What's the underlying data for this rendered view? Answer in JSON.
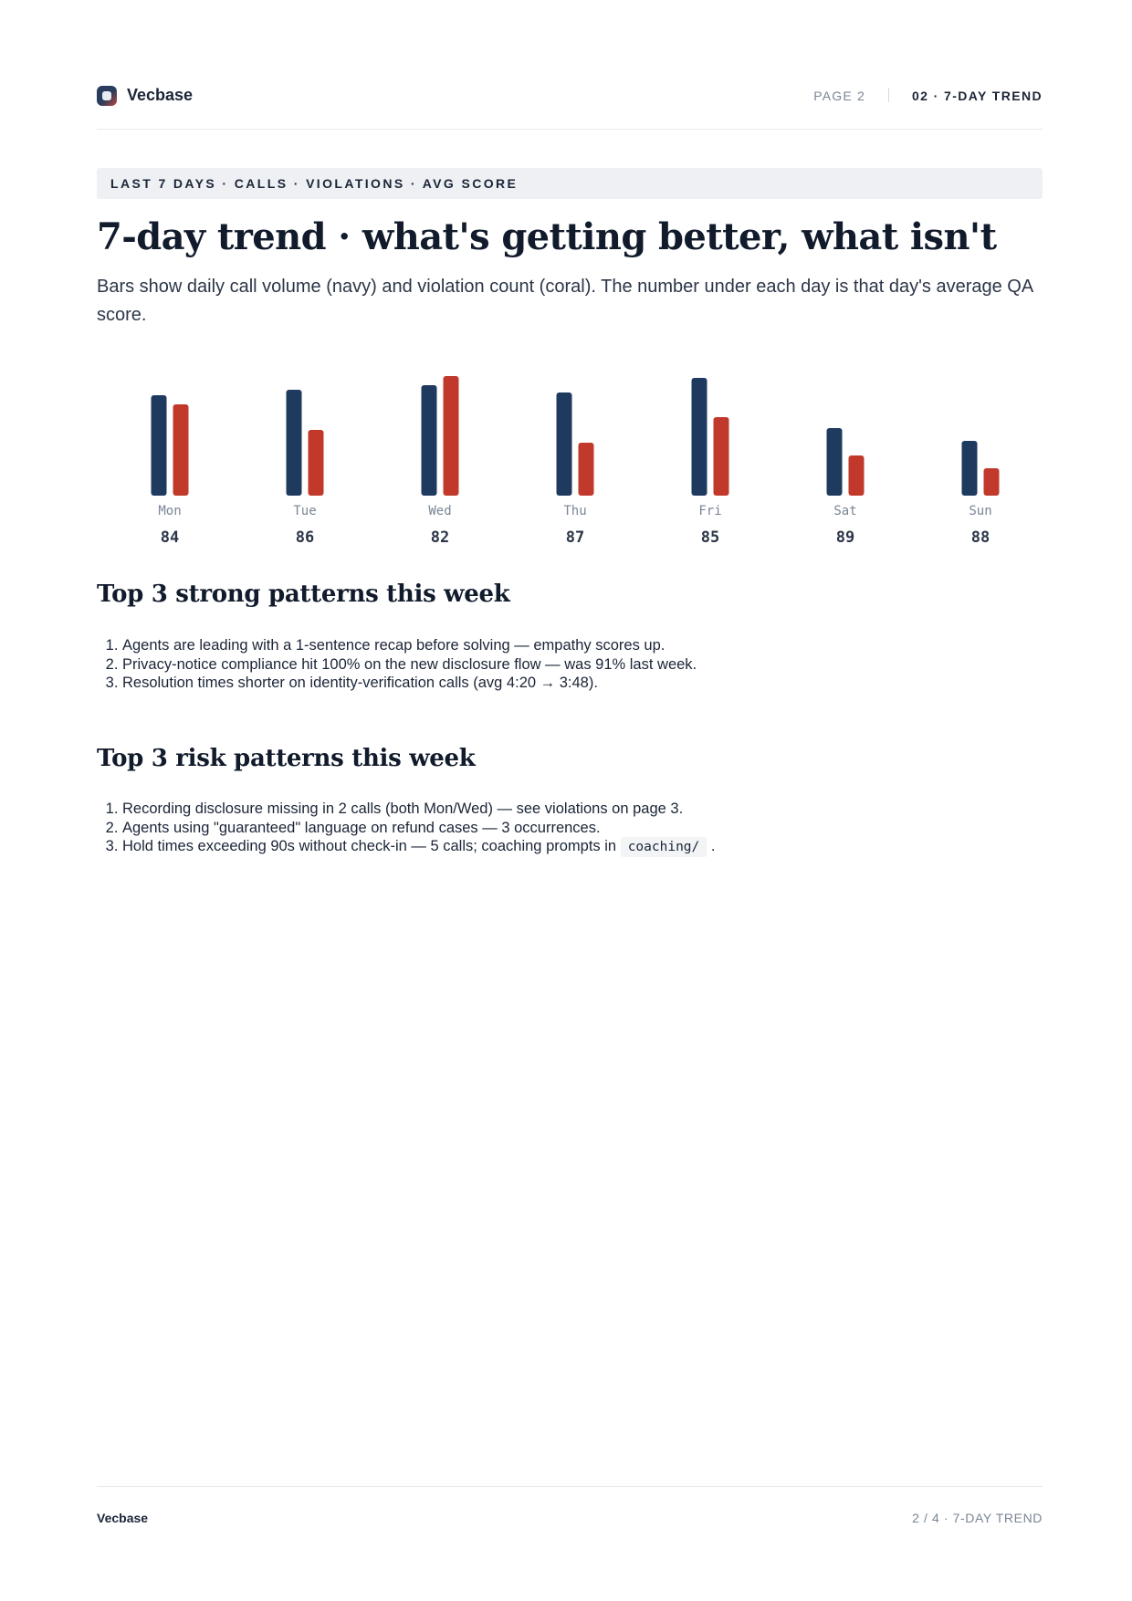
{
  "header": {
    "brand": "Vecbase",
    "page_label": "PAGE 2",
    "section": "02 · 7-DAY TREND"
  },
  "kicker": "LAST 7 DAYS · CALLS · VIOLATIONS · AVG SCORE",
  "title": "7-day trend · what's getting better, what isn't",
  "lede": "Bars show daily call volume (navy) and violation count (coral). The number under each day is that day's average QA score.",
  "colors": {
    "calls": "#1f3a5f",
    "violations": "#c0392b"
  },
  "chart_data": {
    "type": "bar",
    "categories": [
      "Mon",
      "Tue",
      "Wed",
      "Thu",
      "Fri",
      "Sat",
      "Sun"
    ],
    "series": [
      {
        "values": [
          110,
          116,
          121,
          113,
          129,
          74,
          60
        ]
      },
      {
        "values": [
          100,
          72,
          131,
          58,
          86,
          44,
          30
        ]
      }
    ],
    "scores": [
      "84",
      "86",
      "82",
      "87",
      "85",
      "89",
      "88"
    ],
    "ylim": [
      0,
      131
    ]
  },
  "strong": {
    "heading": "Top 3 strong patterns this week",
    "items": [
      "Agents are leading with a 1-sentence recap before solving — empathy scores up.",
      "Privacy-notice compliance hit 100% on the new disclosure flow — was 91% last week.",
      "Resolution times shorter on identity-verification calls (avg 4:20 → 3:48)."
    ]
  },
  "risk": {
    "heading": "Top 3 risk patterns this week",
    "items": [
      "Recording disclosure missing in 2 calls (both Mon/Wed) — see violations on page 3.",
      "Agents using \"guaranteed\" language on refund cases — 3 occurrences.",
      "Hold times exceeding 90s without check-in — 5 calls; coaching prompts in"
    ],
    "code": "coaching/",
    "tail": "."
  },
  "footer": {
    "brand": "Vecbase",
    "right": "2 / 4 · 7-DAY TREND"
  }
}
